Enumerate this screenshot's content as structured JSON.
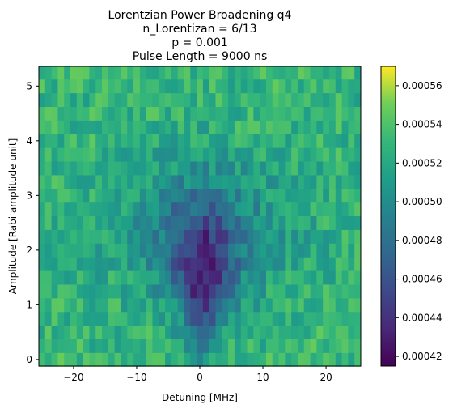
{
  "chart_data": {
    "type": "heatmap",
    "title_lines": [
      "Lorentzian Power Broadening q4",
      "n_Lorentizan = 6/13",
      "p = 0.001",
      "Pulse Length = 9000 ns"
    ],
    "xlabel": "Detuning [MHz]",
    "ylabel": "Amplitude [Rabi amplitude unit]",
    "x_ticks": [
      "−20",
      "−10",
      "0",
      "10",
      "20"
    ],
    "x_tick_values": [
      -20,
      -10,
      0,
      10,
      20
    ],
    "y_ticks": [
      "0",
      "1",
      "2",
      "3",
      "4",
      "5"
    ],
    "y_tick_values": [
      0,
      1,
      2,
      3,
      4,
      5
    ],
    "xlim": [
      -25.5,
      25.5
    ],
    "ylim": [
      -0.12,
      5.36
    ],
    "x_range": [
      -25,
      25
    ],
    "y_range": [
      0,
      5.25
    ],
    "grid_cols": 51,
    "grid_rows": 22,
    "colormap": "viridis",
    "colorbar": {
      "vmin": 0.000415,
      "vmax": 0.00057,
      "tick_values": [
        0.00042,
        0.00044,
        0.00046,
        0.00048,
        0.0005,
        0.00052,
        0.00054,
        0.00056
      ],
      "tick_labels": [
        "0.00042",
        "0.00044",
        "0.00046",
        "0.00048",
        "0.00050",
        "0.00052",
        "0.00054",
        "0.00056"
      ]
    },
    "baseline_value": 0.00053,
    "dip": {
      "center_detuning": 0.5,
      "center_amplitude": 1.6,
      "min_value": 0.00042
    }
  }
}
